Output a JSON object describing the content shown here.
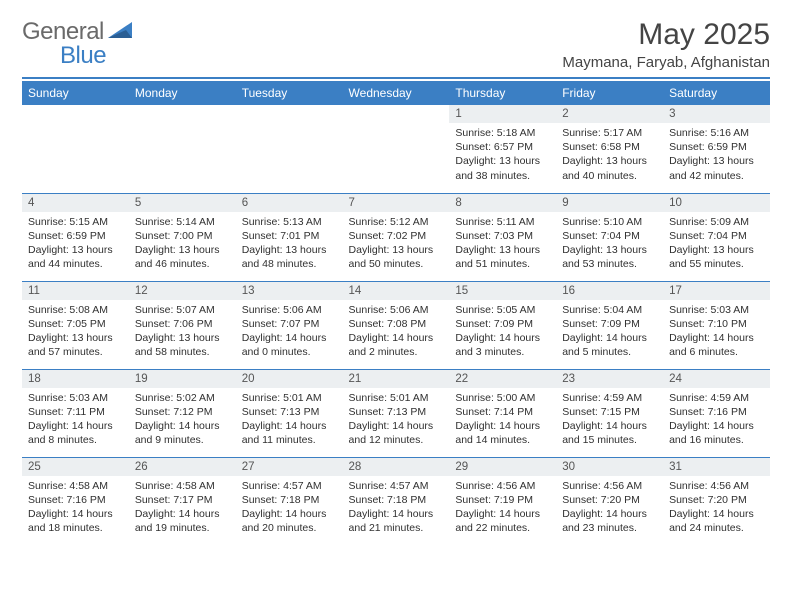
{
  "brand": {
    "part1": "General",
    "part2": "Blue"
  },
  "title": "May 2025",
  "location": "Maymana, Faryab, Afghanistan",
  "colors": {
    "accent": "#3b7fc4",
    "header_text": "#ffffff",
    "daynum_bg": "#eceff1",
    "body_text": "#303030",
    "brand_gray": "#6a6a6a"
  },
  "day_headers": [
    "Sunday",
    "Monday",
    "Tuesday",
    "Wednesday",
    "Thursday",
    "Friday",
    "Saturday"
  ],
  "weeks": [
    [
      {
        "empty": true
      },
      {
        "empty": true
      },
      {
        "empty": true
      },
      {
        "empty": true
      },
      {
        "n": "1",
        "sunrise": "Sunrise: 5:18 AM",
        "sunset": "Sunset: 6:57 PM",
        "day1": "Daylight: 13 hours",
        "day2": "and 38 minutes."
      },
      {
        "n": "2",
        "sunrise": "Sunrise: 5:17 AM",
        "sunset": "Sunset: 6:58 PM",
        "day1": "Daylight: 13 hours",
        "day2": "and 40 minutes."
      },
      {
        "n": "3",
        "sunrise": "Sunrise: 5:16 AM",
        "sunset": "Sunset: 6:59 PM",
        "day1": "Daylight: 13 hours",
        "day2": "and 42 minutes."
      }
    ],
    [
      {
        "n": "4",
        "sunrise": "Sunrise: 5:15 AM",
        "sunset": "Sunset: 6:59 PM",
        "day1": "Daylight: 13 hours",
        "day2": "and 44 minutes."
      },
      {
        "n": "5",
        "sunrise": "Sunrise: 5:14 AM",
        "sunset": "Sunset: 7:00 PM",
        "day1": "Daylight: 13 hours",
        "day2": "and 46 minutes."
      },
      {
        "n": "6",
        "sunrise": "Sunrise: 5:13 AM",
        "sunset": "Sunset: 7:01 PM",
        "day1": "Daylight: 13 hours",
        "day2": "and 48 minutes."
      },
      {
        "n": "7",
        "sunrise": "Sunrise: 5:12 AM",
        "sunset": "Sunset: 7:02 PM",
        "day1": "Daylight: 13 hours",
        "day2": "and 50 minutes."
      },
      {
        "n": "8",
        "sunrise": "Sunrise: 5:11 AM",
        "sunset": "Sunset: 7:03 PM",
        "day1": "Daylight: 13 hours",
        "day2": "and 51 minutes."
      },
      {
        "n": "9",
        "sunrise": "Sunrise: 5:10 AM",
        "sunset": "Sunset: 7:04 PM",
        "day1": "Daylight: 13 hours",
        "day2": "and 53 minutes."
      },
      {
        "n": "10",
        "sunrise": "Sunrise: 5:09 AM",
        "sunset": "Sunset: 7:04 PM",
        "day1": "Daylight: 13 hours",
        "day2": "and 55 minutes."
      }
    ],
    [
      {
        "n": "11",
        "sunrise": "Sunrise: 5:08 AM",
        "sunset": "Sunset: 7:05 PM",
        "day1": "Daylight: 13 hours",
        "day2": "and 57 minutes."
      },
      {
        "n": "12",
        "sunrise": "Sunrise: 5:07 AM",
        "sunset": "Sunset: 7:06 PM",
        "day1": "Daylight: 13 hours",
        "day2": "and 58 minutes."
      },
      {
        "n": "13",
        "sunrise": "Sunrise: 5:06 AM",
        "sunset": "Sunset: 7:07 PM",
        "day1": "Daylight: 14 hours",
        "day2": "and 0 minutes."
      },
      {
        "n": "14",
        "sunrise": "Sunrise: 5:06 AM",
        "sunset": "Sunset: 7:08 PM",
        "day1": "Daylight: 14 hours",
        "day2": "and 2 minutes."
      },
      {
        "n": "15",
        "sunrise": "Sunrise: 5:05 AM",
        "sunset": "Sunset: 7:09 PM",
        "day1": "Daylight: 14 hours",
        "day2": "and 3 minutes."
      },
      {
        "n": "16",
        "sunrise": "Sunrise: 5:04 AM",
        "sunset": "Sunset: 7:09 PM",
        "day1": "Daylight: 14 hours",
        "day2": "and 5 minutes."
      },
      {
        "n": "17",
        "sunrise": "Sunrise: 5:03 AM",
        "sunset": "Sunset: 7:10 PM",
        "day1": "Daylight: 14 hours",
        "day2": "and 6 minutes."
      }
    ],
    [
      {
        "n": "18",
        "sunrise": "Sunrise: 5:03 AM",
        "sunset": "Sunset: 7:11 PM",
        "day1": "Daylight: 14 hours",
        "day2": "and 8 minutes."
      },
      {
        "n": "19",
        "sunrise": "Sunrise: 5:02 AM",
        "sunset": "Sunset: 7:12 PM",
        "day1": "Daylight: 14 hours",
        "day2": "and 9 minutes."
      },
      {
        "n": "20",
        "sunrise": "Sunrise: 5:01 AM",
        "sunset": "Sunset: 7:13 PM",
        "day1": "Daylight: 14 hours",
        "day2": "and 11 minutes."
      },
      {
        "n": "21",
        "sunrise": "Sunrise: 5:01 AM",
        "sunset": "Sunset: 7:13 PM",
        "day1": "Daylight: 14 hours",
        "day2": "and 12 minutes."
      },
      {
        "n": "22",
        "sunrise": "Sunrise: 5:00 AM",
        "sunset": "Sunset: 7:14 PM",
        "day1": "Daylight: 14 hours",
        "day2": "and 14 minutes."
      },
      {
        "n": "23",
        "sunrise": "Sunrise: 4:59 AM",
        "sunset": "Sunset: 7:15 PM",
        "day1": "Daylight: 14 hours",
        "day2": "and 15 minutes."
      },
      {
        "n": "24",
        "sunrise": "Sunrise: 4:59 AM",
        "sunset": "Sunset: 7:16 PM",
        "day1": "Daylight: 14 hours",
        "day2": "and 16 minutes."
      }
    ],
    [
      {
        "n": "25",
        "sunrise": "Sunrise: 4:58 AM",
        "sunset": "Sunset: 7:16 PM",
        "day1": "Daylight: 14 hours",
        "day2": "and 18 minutes."
      },
      {
        "n": "26",
        "sunrise": "Sunrise: 4:58 AM",
        "sunset": "Sunset: 7:17 PM",
        "day1": "Daylight: 14 hours",
        "day2": "and 19 minutes."
      },
      {
        "n": "27",
        "sunrise": "Sunrise: 4:57 AM",
        "sunset": "Sunset: 7:18 PM",
        "day1": "Daylight: 14 hours",
        "day2": "and 20 minutes."
      },
      {
        "n": "28",
        "sunrise": "Sunrise: 4:57 AM",
        "sunset": "Sunset: 7:18 PM",
        "day1": "Daylight: 14 hours",
        "day2": "and 21 minutes."
      },
      {
        "n": "29",
        "sunrise": "Sunrise: 4:56 AM",
        "sunset": "Sunset: 7:19 PM",
        "day1": "Daylight: 14 hours",
        "day2": "and 22 minutes."
      },
      {
        "n": "30",
        "sunrise": "Sunrise: 4:56 AM",
        "sunset": "Sunset: 7:20 PM",
        "day1": "Daylight: 14 hours",
        "day2": "and 23 minutes."
      },
      {
        "n": "31",
        "sunrise": "Sunrise: 4:56 AM",
        "sunset": "Sunset: 7:20 PM",
        "day1": "Daylight: 14 hours",
        "day2": "and 24 minutes."
      }
    ]
  ]
}
